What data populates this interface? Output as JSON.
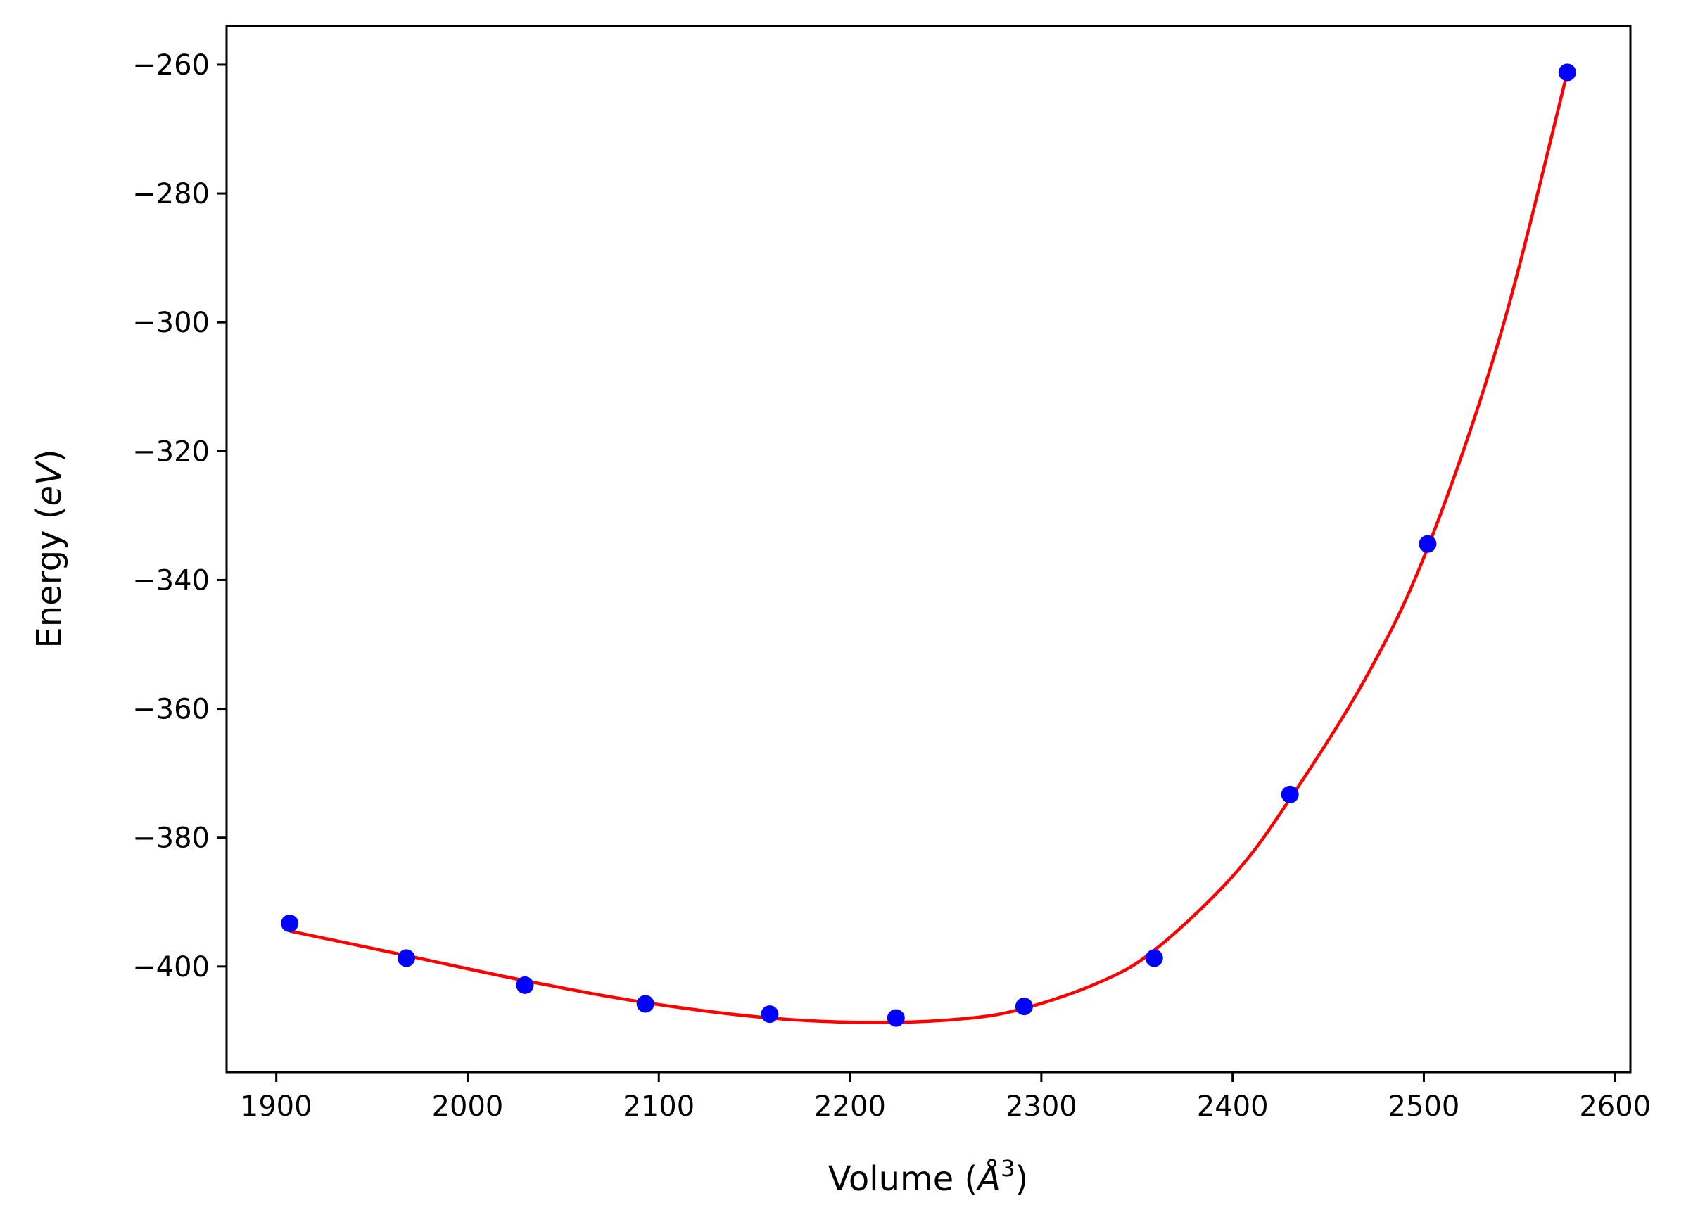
{
  "chart_data": {
    "type": "scatter",
    "title": "",
    "xlabel": "Volume (",
    "xlabel_symbol": "Å",
    "xlabel_exp": "3",
    "xlabel_close": ")",
    "ylabel": "Energy (",
    "ylabel_unit": "eV",
    "ylabel_close": ")",
    "xlim": [
      1874,
      2608
    ],
    "ylim": [
      -416.4,
      -254
    ],
    "xticks": [
      1900,
      2000,
      2100,
      2200,
      2300,
      2400,
      2500,
      2600
    ],
    "yticks": [
      -260,
      -280,
      -300,
      -320,
      -340,
      -360,
      -380,
      -400
    ],
    "xtick_labels": [
      "1900",
      "2000",
      "2100",
      "2200",
      "2300",
      "2400",
      "2500",
      "2600"
    ],
    "ytick_labels": [
      "−260",
      "−280",
      "−300",
      "−320",
      "−340",
      "−360",
      "−380",
      "−400"
    ],
    "grid": false,
    "series": [
      {
        "kind": "points",
        "color": "#0000ff",
        "x": [
          1907,
          1968,
          2030,
          2093,
          2158,
          2224,
          2291,
          2359,
          2430,
          2502,
          2575
        ],
        "y": [
          -393.3,
          -398.7,
          -402.9,
          -405.8,
          -407.4,
          -408.0,
          -406.2,
          -398.7,
          -373.3,
          -334.4,
          -261.2
        ]
      },
      {
        "kind": "fit-line",
        "color": "#ff0000",
        "x": [
          1907,
          1968,
          2030,
          2093,
          2158,
          2213,
          2260,
          2291,
          2330,
          2359,
          2400,
          2430,
          2470,
          2502,
          2540,
          2575
        ],
        "y": [
          -394.5,
          -398.3,
          -402.2,
          -405.6,
          -408.0,
          -408.7,
          -408.1,
          -406.5,
          -402.5,
          -397.5,
          -386.0,
          -374.0,
          -355.0,
          -335.0,
          -302.0,
          -261.2
        ]
      }
    ]
  }
}
